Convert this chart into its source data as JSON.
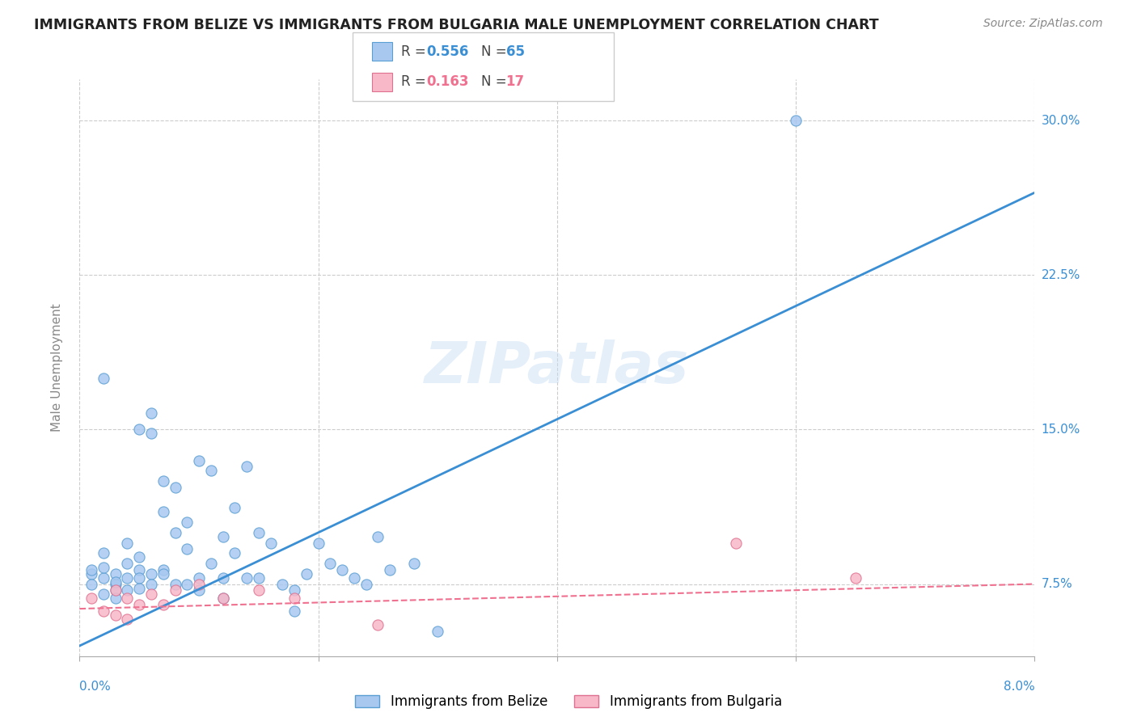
{
  "title": "IMMIGRANTS FROM BELIZE VS IMMIGRANTS FROM BULGARIA MALE UNEMPLOYMENT CORRELATION CHART",
  "source": "Source: ZipAtlas.com",
  "ylabel": "Male Unemployment",
  "right_yticks": [
    "7.5%",
    "15.0%",
    "22.5%",
    "30.0%"
  ],
  "right_ytick_vals": [
    0.075,
    0.15,
    0.225,
    0.3
  ],
  "belize_scatter_color": "#a8c8f0",
  "belize_edge_color": "#5a9fd4",
  "bulgaria_scatter_color": "#f8b8c8",
  "bulgaria_edge_color": "#e07090",
  "belize_line_color": "#3a8fd4",
  "bulgaria_line_color": "#f07090",
  "legend_belize_R": "0.556",
  "legend_belize_N": "65",
  "legend_bulgaria_R": "0.163",
  "legend_bulgaria_N": "17",
  "watermark": "ZIPatlas",
  "belize_points_x": [
    0.001,
    0.001,
    0.001,
    0.002,
    0.002,
    0.002,
    0.002,
    0.003,
    0.003,
    0.003,
    0.003,
    0.003,
    0.004,
    0.004,
    0.004,
    0.004,
    0.005,
    0.005,
    0.005,
    0.005,
    0.005,
    0.006,
    0.006,
    0.006,
    0.006,
    0.007,
    0.007,
    0.007,
    0.007,
    0.008,
    0.008,
    0.008,
    0.009,
    0.009,
    0.009,
    0.01,
    0.01,
    0.01,
    0.011,
    0.011,
    0.012,
    0.012,
    0.013,
    0.013,
    0.014,
    0.014,
    0.015,
    0.016,
    0.017,
    0.018,
    0.019,
    0.02,
    0.021,
    0.022,
    0.023,
    0.024,
    0.025,
    0.026,
    0.028,
    0.03,
    0.012,
    0.015,
    0.018,
    0.06,
    0.002
  ],
  "belize_points_y": [
    0.08,
    0.075,
    0.082,
    0.078,
    0.07,
    0.083,
    0.09,
    0.075,
    0.072,
    0.08,
    0.068,
    0.076,
    0.078,
    0.072,
    0.085,
    0.095,
    0.082,
    0.078,
    0.088,
    0.073,
    0.15,
    0.08,
    0.148,
    0.075,
    0.158,
    0.082,
    0.125,
    0.08,
    0.11,
    0.075,
    0.1,
    0.122,
    0.075,
    0.105,
    0.092,
    0.078,
    0.072,
    0.135,
    0.13,
    0.085,
    0.098,
    0.078,
    0.112,
    0.09,
    0.132,
    0.078,
    0.1,
    0.095,
    0.075,
    0.072,
    0.08,
    0.095,
    0.085,
    0.082,
    0.078,
    0.075,
    0.098,
    0.082,
    0.085,
    0.052,
    0.068,
    0.078,
    0.062,
    0.3,
    0.175
  ],
  "bulgaria_points_x": [
    0.001,
    0.002,
    0.003,
    0.003,
    0.004,
    0.004,
    0.005,
    0.006,
    0.007,
    0.008,
    0.01,
    0.012,
    0.015,
    0.018,
    0.025,
    0.055,
    0.065
  ],
  "bulgaria_points_y": [
    0.068,
    0.062,
    0.06,
    0.072,
    0.058,
    0.068,
    0.065,
    0.07,
    0.065,
    0.072,
    0.075,
    0.068,
    0.072,
    0.068,
    0.055,
    0.095,
    0.078
  ],
  "belize_line_x": [
    0.0,
    0.08
  ],
  "belize_line_y": [
    0.045,
    0.265
  ],
  "bulgaria_line_x": [
    0.0,
    0.08
  ],
  "bulgaria_line_y": [
    0.063,
    0.075
  ],
  "xlim": [
    0.0,
    0.08
  ],
  "ylim": [
    0.04,
    0.32
  ],
  "grid_yticks": [
    0.075,
    0.15,
    0.225,
    0.3
  ],
  "grid_xticks": [
    0.0,
    0.02,
    0.04,
    0.06,
    0.08
  ]
}
